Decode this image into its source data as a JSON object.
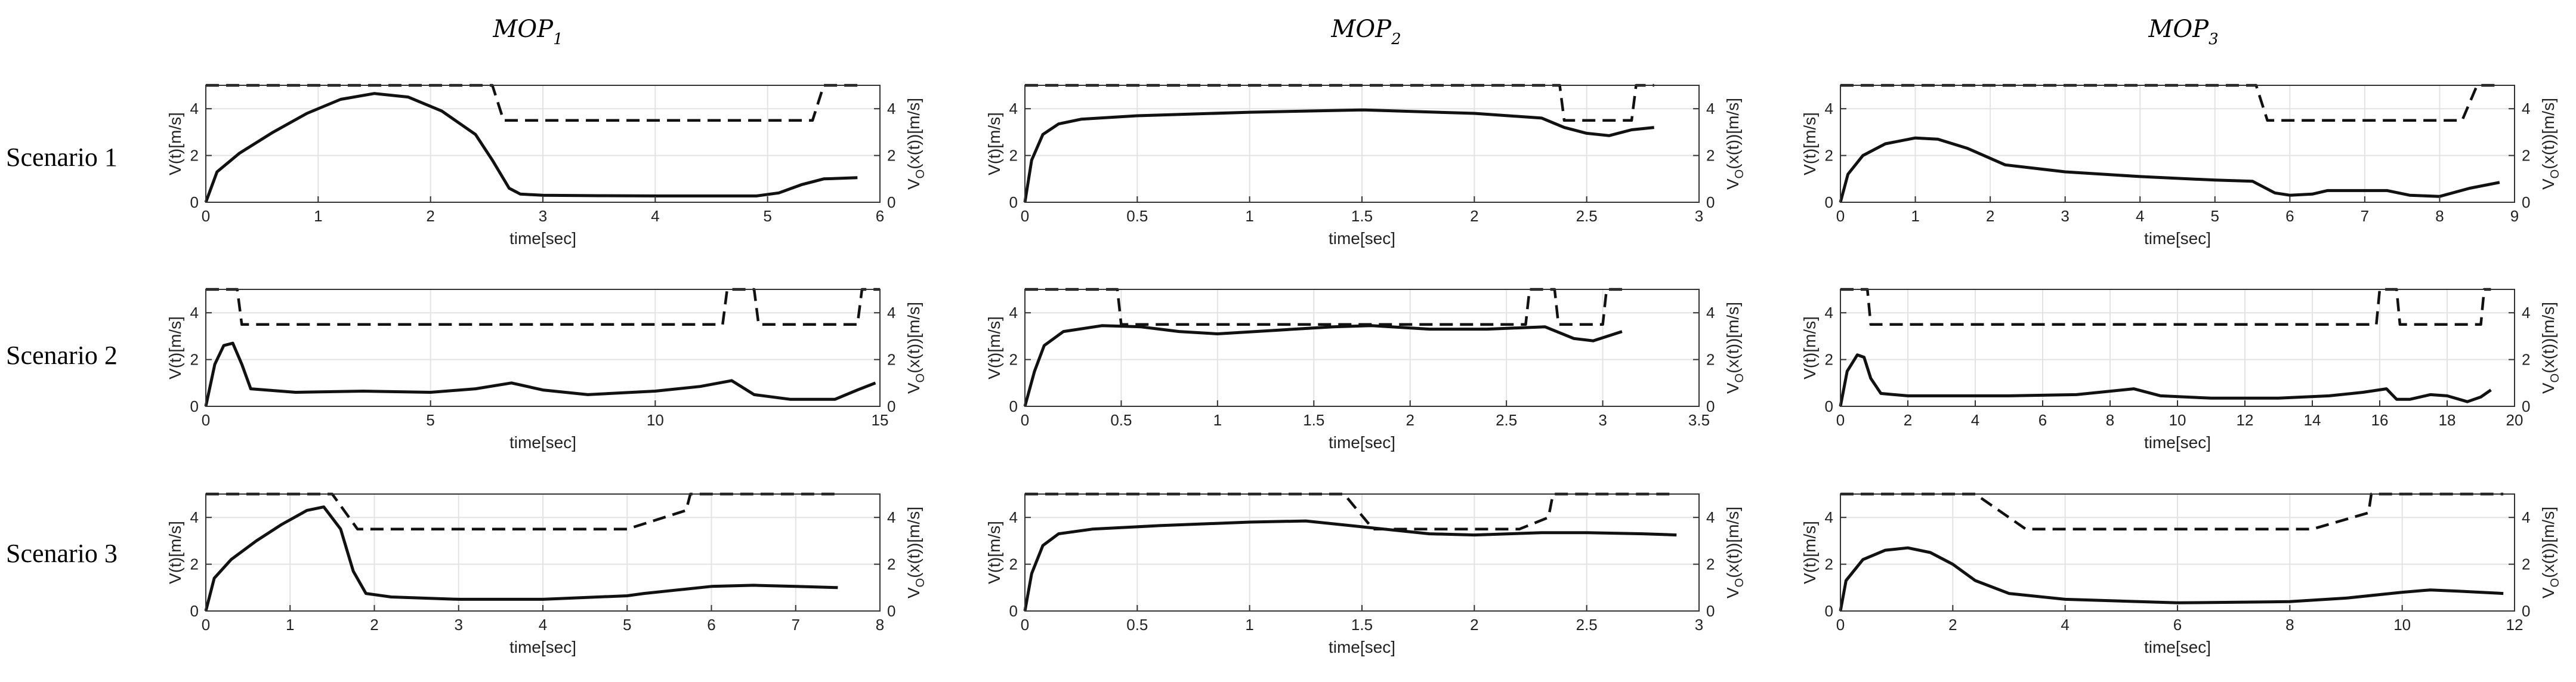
{
  "figure": {
    "columns": [
      {
        "label": "MOP",
        "sub": "1"
      },
      {
        "label": "MOP",
        "sub": "2"
      },
      {
        "label": "MOP",
        "sub": "3"
      }
    ],
    "rows": [
      "Scenario 1",
      "Scenario 2",
      "Scenario 3"
    ]
  },
  "chart_data": [
    {
      "type": "line",
      "row": 1,
      "col": 1,
      "xlabel": "time[sec]",
      "ylabel_left": "V(t)[m/s]",
      "ylabel_right": "V_O(x(t))[m/s]",
      "xlim": [
        0,
        6
      ],
      "xticks": [
        0,
        1,
        2,
        3,
        4,
        5,
        6
      ],
      "ylim": [
        0,
        5
      ],
      "yticks": [
        0,
        2,
        4
      ],
      "series": [
        {
          "name": "V(t)",
          "style": "solid",
          "x": [
            0,
            0.1,
            0.3,
            0.6,
            0.9,
            1.2,
            1.5,
            1.8,
            2.1,
            2.4,
            2.55,
            2.7,
            2.8,
            3.0,
            3.5,
            4.0,
            4.5,
            4.9,
            5.1,
            5.3,
            5.5,
            5.8
          ],
          "y": [
            0,
            1.3,
            2.1,
            3.0,
            3.8,
            4.4,
            4.65,
            4.5,
            3.9,
            2.9,
            1.8,
            0.6,
            0.35,
            0.3,
            0.28,
            0.27,
            0.27,
            0.27,
            0.4,
            0.75,
            1.0,
            1.05
          ]
        },
        {
          "name": "V_O(x(t))",
          "style": "dashed",
          "x": [
            0,
            2.55,
            2.65,
            5.4,
            5.5,
            5.8
          ],
          "y": [
            5,
            5,
            3.5,
            3.5,
            5,
            5
          ]
        }
      ]
    },
    {
      "type": "line",
      "row": 1,
      "col": 2,
      "xlabel": "time[sec]",
      "ylabel_left": "V(t)[m/s]",
      "ylabel_right": "V_O(x(t))[m/s]",
      "xlim": [
        0,
        3
      ],
      "xticks": [
        0,
        0.5,
        1,
        1.5,
        2,
        2.5,
        3
      ],
      "ylim": [
        0,
        5
      ],
      "yticks": [
        0,
        2,
        4
      ],
      "series": [
        {
          "name": "V(t)",
          "style": "solid",
          "x": [
            0,
            0.03,
            0.08,
            0.15,
            0.25,
            0.5,
            1.0,
            1.5,
            2.0,
            2.3,
            2.4,
            2.5,
            2.6,
            2.7,
            2.8
          ],
          "y": [
            0,
            1.8,
            2.9,
            3.35,
            3.55,
            3.7,
            3.85,
            3.95,
            3.8,
            3.6,
            3.2,
            2.95,
            2.85,
            3.1,
            3.2
          ]
        },
        {
          "name": "V_O(x(t))",
          "style": "dashed",
          "x": [
            0,
            2.38,
            2.4,
            2.7,
            2.72,
            2.8
          ],
          "y": [
            5,
            5,
            3.5,
            3.5,
            5,
            5
          ]
        }
      ]
    },
    {
      "type": "line",
      "row": 1,
      "col": 3,
      "xlabel": "time[sec]",
      "ylabel_left": "V(t)[m/s]",
      "ylabel_right": "V_O(x(t))[m/s]",
      "xlim": [
        0,
        9
      ],
      "xticks": [
        0,
        1,
        2,
        3,
        4,
        5,
        6,
        7,
        8,
        9
      ],
      "ylim": [
        0,
        5
      ],
      "yticks": [
        0,
        2,
        4
      ],
      "series": [
        {
          "name": "V(t)",
          "style": "solid",
          "x": [
            0,
            0.1,
            0.3,
            0.6,
            1.0,
            1.3,
            1.7,
            2.2,
            3.0,
            4.0,
            5.0,
            5.5,
            5.8,
            6.0,
            6.3,
            6.5,
            7.0,
            7.3,
            7.6,
            8.0,
            8.4,
            8.8
          ],
          "y": [
            0,
            1.2,
            2.0,
            2.5,
            2.75,
            2.7,
            2.3,
            1.6,
            1.3,
            1.1,
            0.95,
            0.9,
            0.4,
            0.3,
            0.35,
            0.5,
            0.5,
            0.5,
            0.3,
            0.25,
            0.6,
            0.85
          ]
        },
        {
          "name": "V_O(x(t))",
          "style": "dashed",
          "x": [
            0,
            5.55,
            5.7,
            8.3,
            8.5,
            8.8
          ],
          "y": [
            5,
            5,
            3.5,
            3.5,
            5,
            5
          ]
        }
      ]
    },
    {
      "type": "line",
      "row": 2,
      "col": 1,
      "xlabel": "time[sec]",
      "ylabel_left": "V(t)[m/s]",
      "ylabel_right": "V_O(x(t))[m/s]",
      "xlim": [
        0,
        15
      ],
      "xticks": [
        0,
        5,
        10,
        15
      ],
      "ylim": [
        0,
        5
      ],
      "yticks": [
        0,
        2,
        4
      ],
      "series": [
        {
          "name": "V(t)",
          "style": "solid",
          "x": [
            0,
            0.2,
            0.4,
            0.6,
            0.8,
            1.0,
            2.0,
            3.5,
            5.0,
            6.0,
            6.8,
            7.5,
            8.5,
            10.0,
            11.0,
            11.7,
            12.2,
            13.0,
            14.0,
            14.5,
            14.9
          ],
          "y": [
            0,
            1.8,
            2.6,
            2.7,
            1.8,
            0.75,
            0.6,
            0.65,
            0.6,
            0.75,
            1.0,
            0.7,
            0.5,
            0.65,
            0.85,
            1.1,
            0.5,
            0.3,
            0.3,
            0.7,
            1.0
          ]
        },
        {
          "name": "V_O(x(t))",
          "style": "dashed",
          "x": [
            0,
            0.7,
            0.8,
            11.5,
            11.6,
            12.2,
            12.3,
            14.5,
            14.6,
            15
          ],
          "y": [
            5,
            5,
            3.5,
            3.5,
            5,
            5,
            3.5,
            3.5,
            5,
            5
          ]
        }
      ]
    },
    {
      "type": "line",
      "row": 2,
      "col": 2,
      "xlabel": "time[sec]",
      "ylabel_left": "V(t)[m/s]",
      "ylabel_right": "V_O(x(t))[m/s]",
      "xlim": [
        0,
        3.5
      ],
      "xticks": [
        0,
        0.5,
        1,
        1.5,
        2,
        2.5,
        3,
        3.5
      ],
      "ylim": [
        0,
        5
      ],
      "yticks": [
        0,
        2,
        4
      ],
      "series": [
        {
          "name": "V(t)",
          "style": "solid",
          "x": [
            0,
            0.05,
            0.1,
            0.2,
            0.4,
            0.6,
            0.8,
            1.0,
            1.3,
            1.6,
            1.8,
            2.1,
            2.4,
            2.7,
            2.85,
            2.95,
            3.1
          ],
          "y": [
            0,
            1.5,
            2.6,
            3.2,
            3.45,
            3.4,
            3.2,
            3.1,
            3.25,
            3.4,
            3.45,
            3.3,
            3.3,
            3.4,
            2.9,
            2.8,
            3.2
          ]
        },
        {
          "name": "V_O(x(t))",
          "style": "dashed",
          "x": [
            0,
            0.48,
            0.5,
            2.6,
            2.62,
            2.75,
            2.77,
            3.0,
            3.02,
            3.1
          ],
          "y": [
            5,
            5,
            3.5,
            3.5,
            5,
            5,
            3.5,
            3.5,
            5,
            5
          ]
        }
      ]
    },
    {
      "type": "line",
      "row": 2,
      "col": 3,
      "xlabel": "time[sec]",
      "ylabel_left": "V(t)[m/s]",
      "ylabel_right": "V_O(x(t))[m/s]",
      "xlim": [
        0,
        20
      ],
      "xticks": [
        0,
        2,
        4,
        6,
        8,
        10,
        12,
        14,
        16,
        18,
        20
      ],
      "ylim": [
        0,
        5
      ],
      "yticks": [
        0,
        2,
        4
      ],
      "series": [
        {
          "name": "V(t)",
          "style": "solid",
          "x": [
            0,
            0.2,
            0.5,
            0.7,
            0.9,
            1.2,
            2.0,
            3.5,
            5.0,
            7.0,
            8.7,
            9.5,
            11.0,
            13.0,
            14.5,
            15.5,
            16.2,
            16.5,
            16.9,
            17.5,
            18.0,
            18.6,
            19.0,
            19.3
          ],
          "y": [
            0,
            1.5,
            2.2,
            2.1,
            1.2,
            0.55,
            0.45,
            0.45,
            0.45,
            0.5,
            0.75,
            0.45,
            0.35,
            0.35,
            0.45,
            0.6,
            0.75,
            0.3,
            0.3,
            0.5,
            0.45,
            0.2,
            0.4,
            0.7
          ]
        },
        {
          "name": "V_O(x(t))",
          "style": "dashed",
          "x": [
            0,
            0.8,
            0.9,
            15.9,
            16.0,
            16.5,
            16.6,
            19.0,
            19.1,
            19.3
          ],
          "y": [
            5,
            5,
            3.5,
            3.5,
            5,
            5,
            3.5,
            3.5,
            5,
            5
          ]
        }
      ]
    },
    {
      "type": "line",
      "row": 3,
      "col": 1,
      "xlabel": "time[sec]",
      "ylabel_left": "V(t)[m/s]",
      "ylabel_right": "V_O(x(t))[m/s]",
      "xlim": [
        0,
        8
      ],
      "xticks": [
        0,
        1,
        2,
        3,
        4,
        5,
        6,
        7,
        8
      ],
      "ylim": [
        0,
        5
      ],
      "yticks": [
        0,
        2,
        4
      ],
      "series": [
        {
          "name": "V(t)",
          "style": "solid",
          "x": [
            0,
            0.1,
            0.3,
            0.6,
            0.9,
            1.2,
            1.4,
            1.6,
            1.75,
            1.9,
            2.2,
            3.0,
            4.0,
            5.0,
            5.2,
            5.6,
            6.0,
            6.5,
            7.0,
            7.5
          ],
          "y": [
            0,
            1.4,
            2.2,
            3.0,
            3.7,
            4.3,
            4.45,
            3.5,
            1.7,
            0.75,
            0.6,
            0.5,
            0.5,
            0.65,
            0.75,
            0.9,
            1.05,
            1.1,
            1.05,
            1.0
          ]
        },
        {
          "name": "V_O(x(t))",
          "style": "dashed",
          "x": [
            0,
            1.5,
            1.8,
            5.0,
            5.7,
            5.75,
            7.5
          ],
          "y": [
            5,
            5,
            3.5,
            3.5,
            4.3,
            5,
            5
          ]
        }
      ]
    },
    {
      "type": "line",
      "row": 3,
      "col": 2,
      "xlabel": "time[sec]",
      "ylabel_left": "V(t)[m/s]",
      "ylabel_right": "V_O(x(t))[m/s]",
      "xlim": [
        0,
        3
      ],
      "xticks": [
        0,
        0.5,
        1,
        1.5,
        2,
        2.5,
        3
      ],
      "ylim": [
        0,
        5
      ],
      "yticks": [
        0,
        2,
        4
      ],
      "series": [
        {
          "name": "V(t)",
          "style": "solid",
          "x": [
            0,
            0.03,
            0.08,
            0.15,
            0.3,
            0.6,
            1.0,
            1.25,
            1.5,
            1.8,
            2.0,
            2.3,
            2.5,
            2.75,
            2.9
          ],
          "y": [
            0,
            1.6,
            2.8,
            3.3,
            3.5,
            3.65,
            3.8,
            3.85,
            3.6,
            3.3,
            3.25,
            3.35,
            3.35,
            3.3,
            3.25
          ]
        },
        {
          "name": "V_O(x(t))",
          "style": "dashed",
          "x": [
            0,
            1.42,
            1.55,
            2.2,
            2.33,
            2.35,
            2.9
          ],
          "y": [
            5,
            5,
            3.5,
            3.5,
            4.0,
            5,
            5
          ]
        }
      ]
    },
    {
      "type": "line",
      "row": 3,
      "col": 3,
      "xlabel": "time[sec]",
      "ylabel_left": "V(t)[m/s]",
      "ylabel_right": "V_O(x(t))[m/s]",
      "xlim": [
        0,
        12
      ],
      "xticks": [
        0,
        2,
        4,
        6,
        8,
        10,
        12
      ],
      "ylim": [
        0,
        5
      ],
      "yticks": [
        0,
        2,
        4
      ],
      "series": [
        {
          "name": "V(t)",
          "style": "solid",
          "x": [
            0,
            0.1,
            0.4,
            0.8,
            1.2,
            1.6,
            2.0,
            2.4,
            3.0,
            4.0,
            6.0,
            8.0,
            9.0,
            10.0,
            10.5,
            11.0,
            11.8
          ],
          "y": [
            0,
            1.3,
            2.2,
            2.6,
            2.7,
            2.5,
            2.0,
            1.3,
            0.75,
            0.5,
            0.35,
            0.4,
            0.55,
            0.8,
            0.9,
            0.85,
            0.75
          ]
        },
        {
          "name": "V_O(x(t))",
          "style": "dashed",
          "x": [
            0,
            2.4,
            3.3,
            8.4,
            9.4,
            9.45,
            11.8
          ],
          "y": [
            5,
            5,
            3.5,
            3.5,
            4.2,
            5,
            5
          ]
        }
      ]
    }
  ]
}
